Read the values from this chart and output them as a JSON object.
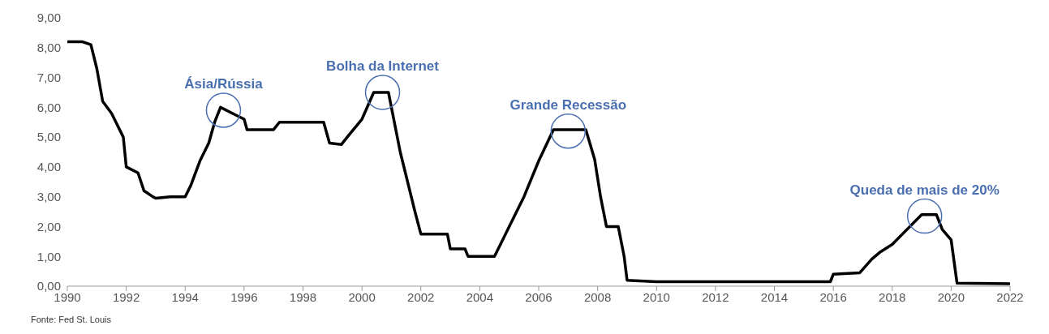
{
  "chart_data": {
    "type": "line",
    "color": "#000000",
    "marker": "none",
    "line_style": "solid",
    "x": [
      1990.0,
      1990.5,
      1990.8,
      1991.0,
      1991.2,
      1991.5,
      1991.9,
      1992.0,
      1992.4,
      1992.6,
      1992.9,
      1993.0,
      1993.5,
      1994.0,
      1994.2,
      1994.5,
      1994.8,
      1995.0,
      1995.2,
      1995.6,
      1996.0,
      1996.1,
      1997.0,
      1997.2,
      1998.0,
      1998.7,
      1998.9,
      1999.3,
      1999.5,
      2000.0,
      2000.4,
      2000.9,
      2001.0,
      2001.3,
      2001.8,
      2002.0,
      2002.9,
      2003.0,
      2003.5,
      2003.6,
      2004.5,
      2004.8,
      2005.5,
      2006.0,
      2006.5,
      2007.6,
      2007.9,
      2008.1,
      2008.3,
      2008.7,
      2008.9,
      2009.0,
      2010.0,
      2015.9,
      2016.0,
      2016.9,
      2017.3,
      2017.6,
      2018.0,
      2018.5,
      2019.0,
      2019.5,
      2019.7,
      2020.0,
      2020.2,
      2022.0
    ],
    "values": [
      8.2,
      8.2,
      8.1,
      7.3,
      6.2,
      5.8,
      5.0,
      4.0,
      3.8,
      3.2,
      3.0,
      2.95,
      3.0,
      3.0,
      3.4,
      4.2,
      4.8,
      5.5,
      6.0,
      5.8,
      5.6,
      5.25,
      5.25,
      5.5,
      5.5,
      5.5,
      4.8,
      4.75,
      5.0,
      5.6,
      6.5,
      6.5,
      6.0,
      4.5,
      2.5,
      1.75,
      1.75,
      1.25,
      1.25,
      1.0,
      1.0,
      1.6,
      3.0,
      4.2,
      5.25,
      5.25,
      4.25,
      3.0,
      2.0,
      2.0,
      1.0,
      0.2,
      0.15,
      0.15,
      0.4,
      0.45,
      0.9,
      1.15,
      1.4,
      1.9,
      2.4,
      2.4,
      1.9,
      1.55,
      0.1,
      0.08
    ],
    "xlim": [
      1990,
      2022
    ],
    "xticks": [
      1990,
      1992,
      1994,
      1996,
      1998,
      2000,
      2002,
      2004,
      2006,
      2008,
      2010,
      2012,
      2014,
      2016,
      2018,
      2020,
      2022
    ],
    "ylim": [
      0,
      9
    ],
    "yticks": [
      {
        "value": 0,
        "label": "0,00"
      },
      {
        "value": 1,
        "label": "1,00"
      },
      {
        "value": 2,
        "label": "2,00"
      },
      {
        "value": 3,
        "label": "3,00"
      },
      {
        "value": 4,
        "label": "4,00"
      },
      {
        "value": 5,
        "label": "5,00"
      },
      {
        "value": 6,
        "label": "6,00"
      },
      {
        "value": 7,
        "label": "7,00"
      },
      {
        "value": 8,
        "label": "8,00"
      },
      {
        "value": 9,
        "label": "9,00"
      }
    ],
    "annotations": [
      {
        "text": "Ásia/Rússia",
        "x": 1995.3,
        "y": 5.9
      },
      {
        "text": "Bolha da Internet",
        "x": 2000.7,
        "y": 6.5
      },
      {
        "text": "Grande Recessão",
        "x": 2007.0,
        "y": 5.2
      },
      {
        "text": "Queda de mais de 20%",
        "x": 2019.1,
        "y": 2.35
      },
      "Fonte: Fed St. Louis"
    ]
  }
}
